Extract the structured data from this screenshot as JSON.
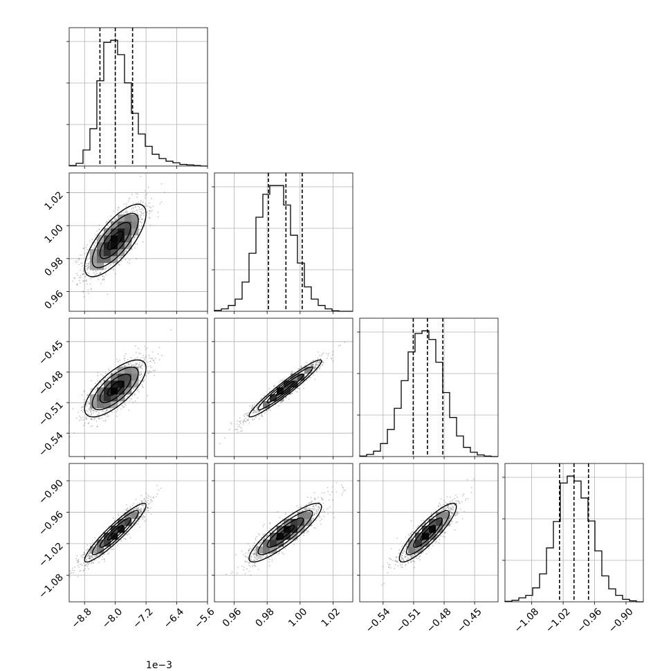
{
  "chart_data": {
    "type": "corner",
    "grid": true,
    "variables": [
      {
        "axis_range": [
          -0.0092,
          -0.0056
        ],
        "ticks": [
          -0.0088,
          -0.008,
          -0.0072,
          -0.0064,
          -0.0056
        ],
        "tick_labels": [
          "−8.8",
          "−8.0",
          "−7.2",
          "−6.4",
          "−5.6"
        ],
        "offset_label": "1e−3",
        "center": -0.008,
        "sd": 0.0004,
        "quantiles": [
          -0.0084,
          -0.008,
          -0.00755
        ],
        "hist_counts": [
          1,
          5,
          30,
          70,
          160,
          232,
          236,
          209,
          156,
          99,
          60,
          37,
          22,
          14,
          9,
          6,
          3,
          2,
          1,
          0
        ]
      },
      {
        "axis_range": [
          0.948,
          1.032
        ],
        "ticks": [
          0.96,
          0.98,
          1.0,
          1.02
        ],
        "tick_labels": [
          "0.96",
          "0.98",
          "1.00",
          "1.02"
        ],
        "offset_label": "",
        "center": 0.991,
        "sd": 0.011,
        "quantiles": [
          0.9808,
          0.9914,
          1.0013
        ],
        "hist_counts": [
          2,
          5,
          12,
          25,
          60,
          119,
          193,
          240,
          258,
          258,
          218,
          156,
          99,
          50,
          25,
          12,
          5,
          1,
          0,
          0
        ]
      },
      {
        "axis_range": [
          -0.563,
          -0.427
        ],
        "ticks": [
          -0.54,
          -0.51,
          -0.48,
          -0.45
        ],
        "tick_labels": [
          "−0.54",
          "−0.51",
          "−0.48",
          "−0.45"
        ],
        "offset_label": "",
        "center": -0.496,
        "sd": 0.014,
        "quantiles": [
          -0.5104,
          -0.4964,
          -0.4813
        ],
        "hist_counts": [
          1,
          4,
          10,
          24,
          50,
          89,
          140,
          193,
          227,
          232,
          216,
          174,
          118,
          72,
          38,
          17,
          8,
          3,
          1,
          0
        ]
      },
      {
        "axis_range": [
          -1.131,
          -0.867
        ],
        "ticks": [
          -1.08,
          -1.02,
          -0.96,
          -0.9
        ],
        "tick_labels": [
          "−1.08",
          "−1.02",
          "−0.96",
          "−0.90"
        ],
        "offset_label": "",
        "center": -0.999,
        "sd": 0.028,
        "quantiles": [
          -1.0269,
          -0.9993,
          -0.9716
        ],
        "hist_counts": [
          1,
          3,
          8,
          13,
          28,
          56,
          108,
          161,
          238,
          252,
          242,
          208,
          162,
          102,
          52,
          26,
          13,
          5,
          2,
          0
        ]
      }
    ],
    "correlations": {
      "1-0": 0.74,
      "2-0": 0.72,
      "2-1": 0.96,
      "3-0": 0.93,
      "3-1": 0.88,
      "3-2": 0.88
    }
  }
}
